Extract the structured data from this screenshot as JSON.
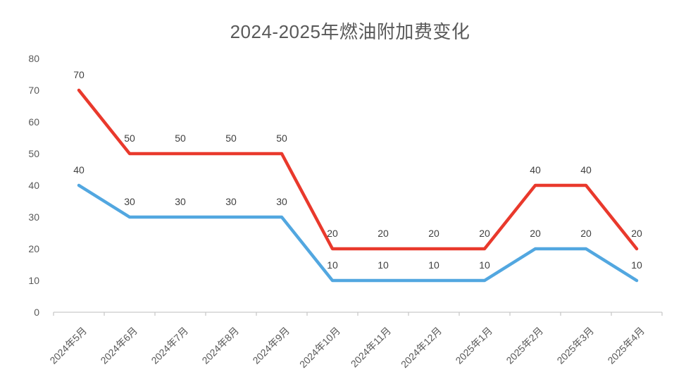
{
  "chart_data": {
    "type": "line",
    "title": "2024-2025年燃油附加费变化",
    "categories": [
      "2024年5月",
      "2024年6月",
      "2024年7月",
      "2024年8月",
      "2024年9月",
      "2024年10月",
      "2024年11月",
      "2024年12月",
      "2025年1月",
      "2025年2月",
      "2025年3月",
      "2025年4月"
    ],
    "series": [
      {
        "name": "red-series",
        "color": "#e9392c",
        "values": [
          70,
          50,
          50,
          50,
          50,
          20,
          20,
          20,
          20,
          40,
          40,
          20
        ]
      },
      {
        "name": "blue-series",
        "color": "#52a7e0",
        "values": [
          40,
          30,
          30,
          30,
          30,
          10,
          10,
          10,
          10,
          20,
          20,
          10
        ]
      }
    ],
    "ylim": [
      0,
      80
    ],
    "y_ticks": [
      0,
      10,
      20,
      30,
      40,
      50,
      60,
      70,
      80
    ],
    "grid": "off",
    "legend": "none",
    "data_labels": "on",
    "x_label_rotation_deg": -45,
    "colors": {
      "axis_line": "#c9c9c9",
      "tick_label": "#595959",
      "title": "#595959",
      "data_label": "#404040",
      "background": "#ffffff"
    }
  }
}
